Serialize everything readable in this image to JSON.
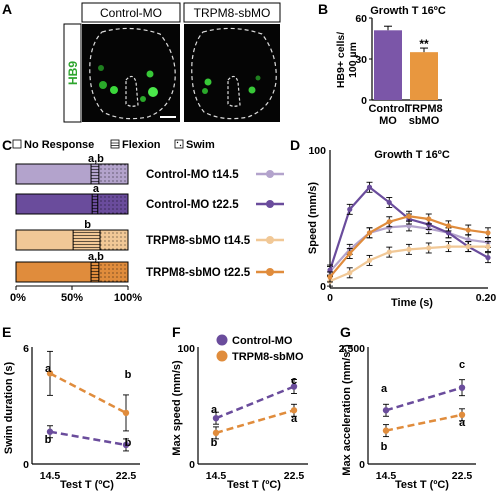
{
  "panels": {
    "A": "A",
    "B": "B",
    "C": "C",
    "D": "D",
    "E": "E",
    "F": "F",
    "G": "G"
  },
  "colors": {
    "control": "#6a4c9c",
    "control_light": "#b3a3cc",
    "trpm8": "#e08c3c",
    "trpm8_light": "#f1c896",
    "purple_bar": "#7b56a8",
    "orange_bar": "#e8973f"
  },
  "panel_a": {
    "stain": "HB9",
    "image1_label": "Control-MO",
    "image2_label": "TRPM8-sbMO"
  },
  "panel_b": {
    "title": "Growth T 16ºC",
    "ylabel_line1": "HB9+ cells/",
    "ylabel_line2": "100 µm",
    "yticks": [
      "0",
      "30",
      "60"
    ],
    "bar1_line1": "Control",
    "bar1_line2": "MO",
    "bar2_line1": "TRPM8",
    "bar2_line2": "sbMO",
    "sig": "**"
  },
  "panel_c": {
    "legend_no_response": "No Response",
    "legend_flexion": "Flexion",
    "legend_swim": "Swim",
    "rows": [
      {
        "label": "Control-MO t14.5",
        "stat": "a,b"
      },
      {
        "label": "Control-MO t22.5",
        "stat": "a"
      },
      {
        "label": "TRPM8-sbMO t14.5",
        "stat": "b"
      },
      {
        "label": "TRPM8-sbMO t22.5",
        "stat": "a,b"
      }
    ],
    "xticks": [
      "0%",
      "50%",
      "100%"
    ]
  },
  "panel_d": {
    "title": "Growth T 16ºC",
    "ylabel": "Speed (mm/s)",
    "xlabel": "Time (s)",
    "ytick_top": "100",
    "ytick_bottom": "0",
    "xtick_left": "0",
    "xtick_right": "0.20"
  },
  "panel_efg_legend": {
    "control": "Control-MO",
    "trpm8": "TRPM8-sbMO"
  },
  "panel_e": {
    "ylabel": "Swim duration (s)",
    "xlabel": "Test T (ºC)",
    "ytick_top": "6",
    "ytick_bottom": "0",
    "x1": "14.5",
    "x2": "22.5",
    "letters": [
      "a",
      "b",
      "b",
      "b"
    ]
  },
  "panel_f": {
    "ylabel": "Max speed (mm/s)",
    "xlabel": "Test T (ºC)",
    "ytick_top": "100",
    "ytick_bottom": "0",
    "x1": "14.5",
    "x2": "22.5",
    "letters": [
      "a",
      "c",
      "b",
      "a"
    ]
  },
  "panel_g": {
    "ylabel": "Max acceleration (mm/s²)",
    "xlabel": "Test T (ºC)",
    "ytick_top": "2,500",
    "ytick_bottom": "0",
    "x1": "14.5",
    "x2": "22.5",
    "letters": [
      "a",
      "c",
      "b",
      "a"
    ]
  },
  "chart_data": [
    {
      "panel": "B",
      "type": "bar",
      "title": "Growth T 16ºC",
      "ylabel": "HB9+ cells/ 100 µm",
      "categories": [
        "Control MO",
        "TRPM8 sbMO"
      ],
      "values": [
        51,
        35
      ],
      "errors": [
        3,
        3
      ],
      "ylim": [
        0,
        60
      ]
    },
    {
      "panel": "C",
      "type": "bar",
      "orientation": "horizontal",
      "stacked": true,
      "categories": [
        "Control-MO t14.5",
        "Control-MO t22.5",
        "TRPM8-sbMO t14.5",
        "TRPM8-sbMO t22.5"
      ],
      "series": [
        {
          "name": "No Response",
          "values": [
            67,
            68,
            51,
            67
          ]
        },
        {
          "name": "Flexion",
          "values": [
            7,
            5,
            24,
            7
          ]
        },
        {
          "name": "Swim",
          "values": [
            26,
            27,
            25,
            26
          ]
        }
      ],
      "xlim": [
        0,
        100
      ]
    },
    {
      "panel": "D",
      "type": "line",
      "title": "Growth T 16ºC",
      "xlabel": "Time (s)",
      "ylabel": "Speed (mm/s)",
      "x": [
        0,
        0.025,
        0.05,
        0.075,
        0.1,
        0.125,
        0.15,
        0.175,
        0.2
      ],
      "xlim": [
        0,
        0.2
      ],
      "ylim": [
        0,
        100
      ],
      "series": [
        {
          "name": "Control-MO t14.5",
          "values": [
            12,
            28,
            40,
            44,
            45,
            43,
            40,
            35,
            33
          ]
        },
        {
          "name": "Control-MO t22.5",
          "values": [
            13,
            57,
            73,
            62,
            50,
            46,
            40,
            30,
            22
          ]
        },
        {
          "name": "TRPM8-sbMO t14.5",
          "values": [
            5,
            11,
            20,
            26,
            28,
            29,
            30,
            30,
            30
          ]
        },
        {
          "name": "TRPM8-sbMO t22.5",
          "values": [
            8,
            25,
            40,
            48,
            52,
            50,
            45,
            42,
            40
          ]
        }
      ]
    },
    {
      "panel": "E",
      "type": "line",
      "xlabel": "Test T (ºC)",
      "ylabel": "Swim duration (s)",
      "x": [
        14.5,
        22.5
      ],
      "ylim": [
        0,
        6
      ],
      "series": [
        {
          "name": "Control-MO",
          "values": [
            1.5,
            0.8
          ]
        },
        {
          "name": "TRPM8-sbMO",
          "values": [
            4.6,
            2.5
          ]
        }
      ]
    },
    {
      "panel": "F",
      "type": "line",
      "xlabel": "Test T (ºC)",
      "ylabel": "Max speed (mm/s)",
      "x": [
        14.5,
        22.5
      ],
      "ylim": [
        0,
        100
      ],
      "series": [
        {
          "name": "Control-MO",
          "values": [
            37,
            65
          ]
        },
        {
          "name": "TRPM8-sbMO",
          "values": [
            24,
            44
          ]
        }
      ]
    },
    {
      "panel": "G",
      "type": "line",
      "xlabel": "Test T (ºC)",
      "ylabel": "Max acceleration (mm/s²)",
      "x": [
        14.5,
        22.5
      ],
      "ylim": [
        0,
        2500
      ],
      "series": [
        {
          "name": "Control-MO",
          "values": [
            1100,
            1600
          ]
        },
        {
          "name": "TRPM8-sbMO",
          "values": [
            650,
            1000
          ]
        }
      ]
    }
  ]
}
